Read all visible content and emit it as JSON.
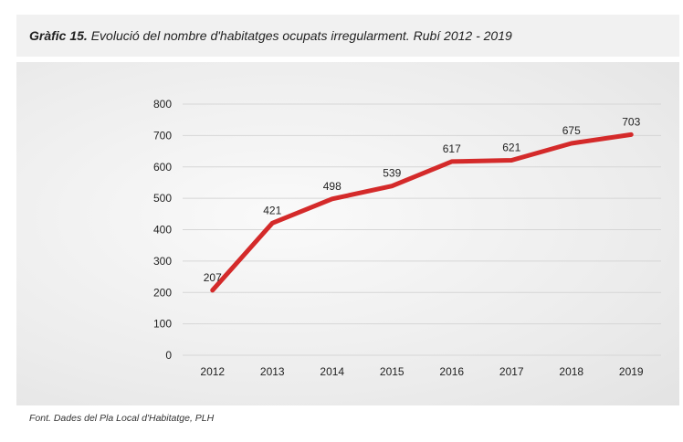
{
  "caption": {
    "label": "Gràfic 15.",
    "text": "Evolució del nombre d'habitatges ocupats irregularment. Rubí 2012 - 2019"
  },
  "source": "Font. Dades del Pla Local d'Habitatge, PLH",
  "chart_data": {
    "type": "line",
    "title": "",
    "xlabel": "",
    "ylabel": "",
    "categories": [
      "2012",
      "2013",
      "2014",
      "2015",
      "2016",
      "2017",
      "2018",
      "2019"
    ],
    "series": [
      {
        "values": [
          207,
          421,
          498,
          539,
          617,
          621,
          675,
          703
        ],
        "color": "#d42a2a"
      }
    ],
    "ylim": [
      0,
      800
    ],
    "yticks": [
      0,
      100,
      200,
      300,
      400,
      500,
      600,
      700,
      800
    ],
    "grid": true,
    "data_labels": true,
    "legend": "none"
  }
}
